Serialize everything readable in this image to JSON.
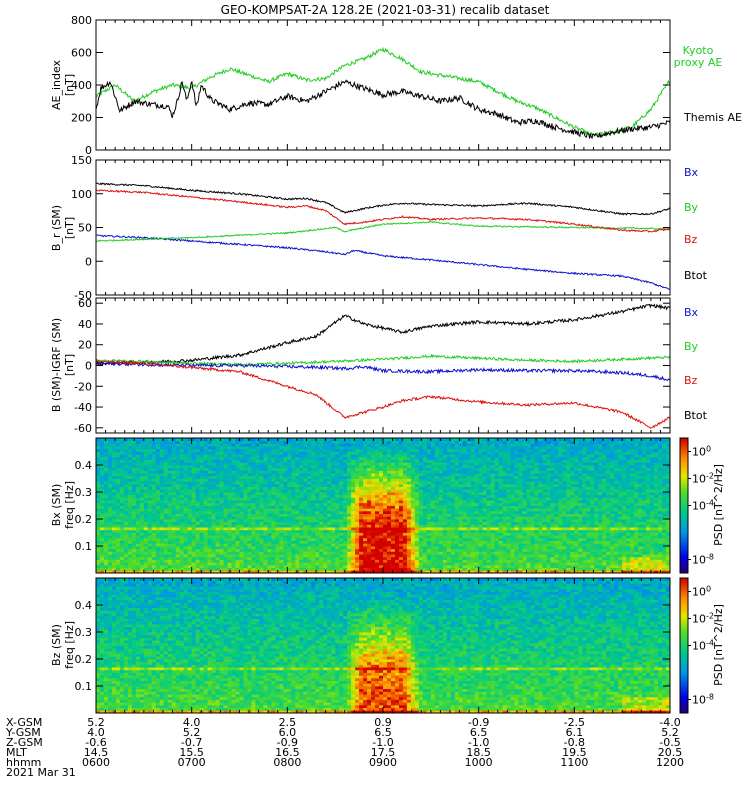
{
  "title": "GEO-KOMPSAT-2A 128.2E (2021-03-31) recalib dataset",
  "colors": {
    "black": "#000000",
    "green": "#22cc22",
    "red": "#dd1111",
    "blue": "#1111cc"
  },
  "x_axis": {
    "start_hhmm": "0600",
    "end_hhmm": "1200",
    "rows": [
      {
        "label": "X-GSM",
        "values": [
          "5.2",
          "4.0",
          "2.5",
          "0.9",
          "-0.9",
          "-2.5",
          "-4.0"
        ]
      },
      {
        "label": "Y-GSM",
        "values": [
          "4.0",
          "5.2",
          "6.0",
          "6.5",
          "6.5",
          "6.1",
          "5.2"
        ]
      },
      {
        "label": "Z-GSM",
        "values": [
          "-0.6",
          "-0.7",
          "-0.9",
          "-1.0",
          "-1.0",
          "-0.8",
          "-0.5"
        ]
      },
      {
        "label": "MLT",
        "values": [
          "14.5",
          "15.5",
          "16.5",
          "17.5",
          "18.5",
          "19.5",
          "20.5"
        ]
      },
      {
        "label": "hhmm",
        "values": [
          "0600",
          "0700",
          "0800",
          "0900",
          "1000",
          "1100",
          "1200"
        ]
      }
    ],
    "date": "2021 Mar 31"
  },
  "chart_data": [
    {
      "type": "line",
      "ylabel_lines": [
        "AE_index",
        "[nT]"
      ],
      "ylim": [
        0,
        800
      ],
      "yticks": [
        "0",
        "200",
        "400",
        "600",
        "800"
      ],
      "series": [
        {
          "name": "Kyoto proxy AE",
          "legend_lines": [
            "Kyoto",
            "proxy AE"
          ],
          "color": "#22cc22",
          "x": [
            0,
            0.2,
            0.4,
            0.6,
            0.8,
            1.0,
            1.2,
            1.4,
            1.6,
            1.8,
            2.0,
            2.2,
            2.4,
            2.6,
            2.8,
            3.0,
            3.2,
            3.4,
            3.6,
            3.8,
            4.0,
            4.2,
            4.4,
            4.6,
            4.8,
            5.0,
            5.2,
            5.4,
            5.6,
            5.8,
            6.0
          ],
          "y": [
            330,
            400,
            300,
            360,
            400,
            380,
            450,
            500,
            460,
            420,
            470,
            430,
            440,
            520,
            560,
            620,
            560,
            480,
            460,
            440,
            420,
            360,
            300,
            260,
            200,
            140,
            90,
            110,
            140,
            250,
            430
          ],
          "noise": 12
        },
        {
          "name": "Themis AE",
          "legend_lines": [
            "Themis AE"
          ],
          "color": "#000000",
          "x": [
            0,
            0.05,
            0.15,
            0.25,
            0.4,
            0.6,
            0.75,
            0.8,
            0.85,
            0.9,
            0.95,
            1.0,
            1.05,
            1.1,
            1.2,
            1.4,
            1.6,
            1.8,
            2.0,
            2.2,
            2.4,
            2.6,
            2.8,
            3.0,
            3.2,
            3.4,
            3.6,
            3.8,
            4.0,
            4.2,
            4.4,
            4.6,
            4.8,
            5.0,
            5.2,
            5.4,
            5.6,
            5.8,
            6.0
          ],
          "y": [
            250,
            380,
            420,
            240,
            300,
            280,
            270,
            210,
            300,
            420,
            300,
            430,
            260,
            400,
            310,
            250,
            290,
            280,
            330,
            300,
            360,
            420,
            380,
            340,
            360,
            330,
            300,
            320,
            250,
            220,
            170,
            180,
            140,
            110,
            80,
            110,
            130,
            140,
            170
          ],
          "noise": 18
        }
      ]
    },
    {
      "type": "line",
      "ylabel_lines": [
        "B_r (SM)",
        "[nT]"
      ],
      "ylim": [
        -50,
        150
      ],
      "yticks": [
        "-50",
        "0",
        "50",
        "100",
        "150"
      ],
      "series": [
        {
          "name": "Btot",
          "color": "#000000",
          "x": [
            0,
            0.5,
            1,
            1.5,
            2,
            2.2,
            2.4,
            2.6,
            2.8,
            3,
            3.2,
            3.5,
            4,
            4.5,
            5,
            5.5,
            5.8,
            6
          ],
          "y": [
            115,
            112,
            105,
            100,
            92,
            93,
            87,
            72,
            78,
            83,
            86,
            84,
            82,
            86,
            80,
            70,
            70,
            78
          ],
          "noise": 1.2
        },
        {
          "name": "Bx",
          "color": "#1111cc",
          "x": [
            0,
            0.5,
            1,
            1.5,
            2,
            2.4,
            2.6,
            2.7,
            3,
            3.5,
            4,
            4.5,
            5,
            5.5,
            5.8,
            6
          ],
          "y": [
            38,
            35,
            30,
            25,
            20,
            14,
            10,
            16,
            8,
            2,
            -5,
            -12,
            -18,
            -22,
            -32,
            -42
          ],
          "noise": 1.2
        },
        {
          "name": "By",
          "color": "#22cc22",
          "x": [
            0,
            1,
            2,
            2.5,
            2.6,
            3,
            3.5,
            4,
            5,
            6
          ],
          "y": [
            30,
            35,
            42,
            50,
            44,
            55,
            58,
            52,
            50,
            48
          ],
          "noise": 1.0
        },
        {
          "name": "Bz",
          "color": "#dd1111",
          "x": [
            0,
            0.5,
            1,
            1.5,
            2,
            2.2,
            2.4,
            2.6,
            2.8,
            3,
            3.2,
            3.5,
            4,
            4.5,
            5,
            5.5,
            5.8,
            6
          ],
          "y": [
            105,
            102,
            95,
            88,
            80,
            82,
            75,
            55,
            58,
            62,
            66,
            62,
            64,
            62,
            55,
            46,
            44,
            48
          ],
          "noise": 1.2
        }
      ],
      "legend_entries": [
        {
          "label": "Bx",
          "color": "#1111cc"
        },
        {
          "label": "By",
          "color": "#22cc22"
        },
        {
          "label": "Bz",
          "color": "#dd1111"
        },
        {
          "label": "Btot",
          "color": "#000000"
        }
      ]
    },
    {
      "type": "line",
      "ylabel_lines": [
        "B (SM)-IGRF (SM)",
        "[nT]"
      ],
      "ylim": [
        -65,
        65
      ],
      "yticks": [
        "-60",
        "-40",
        "-20",
        "0",
        "20",
        "40",
        "60"
      ],
      "series": [
        {
          "name": "Btot",
          "color": "#000000",
          "x": [
            0,
            0.5,
            1,
            1.5,
            2,
            2.3,
            2.6,
            2.8,
            3,
            3.2,
            3.5,
            4,
            4.5,
            5,
            5.5,
            5.8,
            6
          ],
          "y": [
            2,
            3,
            5,
            10,
            22,
            28,
            48,
            40,
            36,
            32,
            38,
            42,
            40,
            44,
            52,
            58,
            55
          ],
          "noise": 1.5
        },
        {
          "name": "By",
          "color": "#22cc22",
          "x": [
            0,
            0.5,
            1,
            1.5,
            2,
            2.5,
            3,
            3.5,
            4,
            4.5,
            5,
            5.5,
            6
          ],
          "y": [
            5,
            4,
            2,
            1,
            2,
            4,
            6,
            9,
            7,
            5,
            4,
            6,
            8
          ],
          "noise": 1.2
        },
        {
          "name": "Bx",
          "color": "#1111cc",
          "x": [
            0,
            0.5,
            1,
            1.5,
            2,
            2.4,
            2.6,
            2.8,
            3,
            3.5,
            4,
            4.5,
            5,
            5.5,
            5.8,
            6
          ],
          "y": [
            2,
            1,
            0,
            0,
            -1,
            -2,
            -3,
            -1,
            -5,
            -6,
            -4,
            -5,
            -5,
            -7,
            -10,
            -14
          ],
          "noise": 1.5
        },
        {
          "name": "Bz",
          "color": "#dd1111",
          "x": [
            0,
            0.5,
            1,
            1.5,
            2,
            2.3,
            2.6,
            2.8,
            3,
            3.2,
            3.5,
            4,
            4.5,
            5,
            5.5,
            5.8,
            6
          ],
          "y": [
            4,
            2,
            -2,
            -6,
            -20,
            -28,
            -50,
            -45,
            -40,
            -34,
            -30,
            -35,
            -38,
            -36,
            -45,
            -60,
            -50
          ],
          "noise": 1.2
        }
      ],
      "legend_entries": [
        {
          "label": "Bx",
          "color": "#1111cc"
        },
        {
          "label": "By",
          "color": "#22cc22"
        },
        {
          "label": "Bz",
          "color": "#dd1111"
        },
        {
          "label": "Btot",
          "color": "#000000"
        }
      ]
    },
    {
      "type": "heatmap",
      "ylabel_lines": [
        "Bx (SM)",
        "freq [Hz]"
      ],
      "ylim": [
        0,
        0.5
      ],
      "yticks": [
        "0.1",
        "0.2",
        "0.3",
        "0.4"
      ],
      "colorbar_label": "PSD [nT^2/Hz]",
      "colorbar_ticks": [
        "10^-8",
        "10^-4",
        "10^-2",
        "10^0"
      ],
      "zlim_log10": [
        -9,
        1
      ],
      "bursts": [
        {
          "x0": 2.6,
          "x1": 3.4,
          "fmax": 0.22,
          "boost": 5.0
        }
      ],
      "stripe_freq": 0.165
    },
    {
      "type": "heatmap",
      "ylabel_lines": [
        "Bz (SM)",
        "freq [Hz]"
      ],
      "ylim": [
        0,
        0.5
      ],
      "yticks": [
        "0.1",
        "0.2",
        "0.3",
        "0.4"
      ],
      "colorbar_label": "PSD [nT^2/Hz]",
      "colorbar_ticks": [
        "10^-8",
        "10^-4",
        "10^-2",
        "10^0"
      ],
      "zlim_log10": [
        -9,
        1
      ],
      "bursts": [
        {
          "x0": 2.6,
          "x1": 3.4,
          "fmax": 0.17,
          "boost": 3.8
        }
      ],
      "stripe_freq": 0.165
    }
  ]
}
